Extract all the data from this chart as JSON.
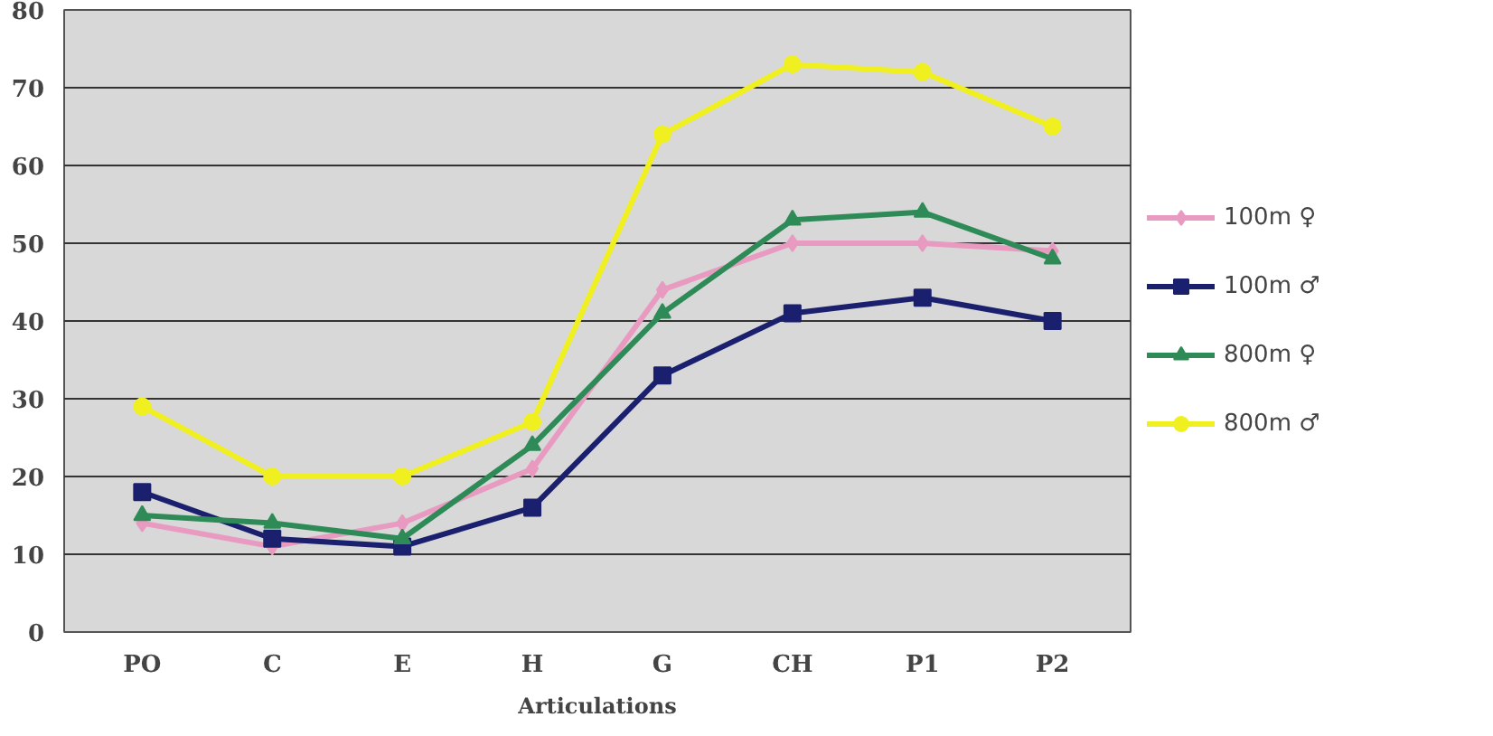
{
  "chart_data": {
    "type": "line",
    "xlabel": "Articulations",
    "categories": [
      "PO",
      "C",
      "E",
      "H",
      "G",
      "CH",
      "P1",
      "P2"
    ],
    "series": [
      {
        "name": "100m ♀",
        "color": "#e89ac0",
        "marker": "diamond",
        "values": [
          14,
          11,
          14,
          21,
          44,
          50,
          50,
          49
        ]
      },
      {
        "name": "100m ♂",
        "color": "#1a1f6e",
        "marker": "square",
        "values": [
          18,
          12,
          11,
          16,
          33,
          41,
          43,
          40
        ]
      },
      {
        "name": "800m ♀",
        "color": "#2e8b57",
        "marker": "triangle",
        "values": [
          15,
          14,
          12,
          24,
          41,
          53,
          54,
          48
        ]
      },
      {
        "name": "800m ♂",
        "color": "#f0f020",
        "marker": "circle",
        "values": [
          29,
          20,
          20,
          27,
          64,
          73,
          72,
          65
        ]
      }
    ],
    "ylim": [
      0,
      80
    ],
    "yticks": [
      0,
      10,
      20,
      30,
      40,
      50,
      60,
      70,
      80
    ],
    "grid": "y",
    "legend": "right",
    "line_style": "solid"
  }
}
